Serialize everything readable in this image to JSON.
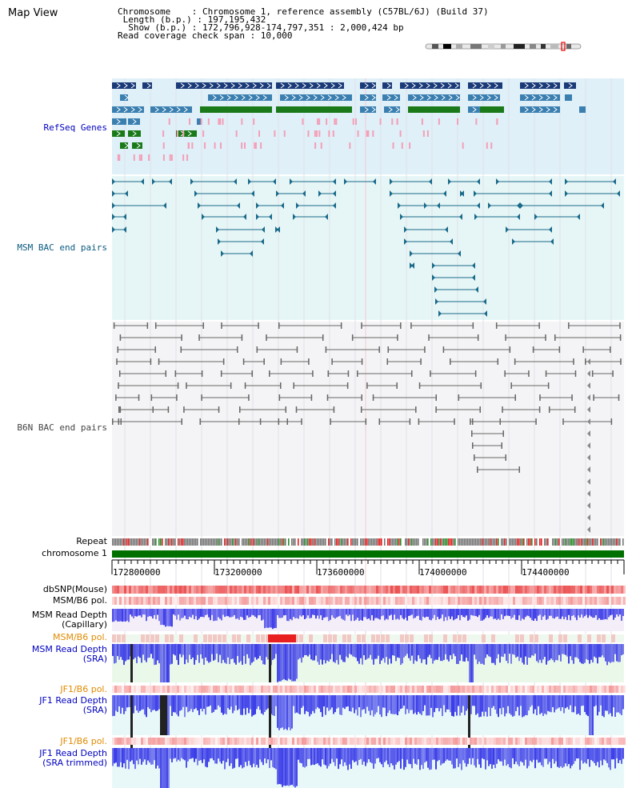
{
  "view": {
    "title": "Map View"
  },
  "info": {
    "lines": [
      "Chromosome    : Chromosome 1, reference assembly (C57BL/6J) (Build 37)",
      " Length (b.p.) : 197,195,432",
      "  Show (b.p.) : 172,796,928-174,797,351 : 2,000,424 bp",
      "Read coverage check span : 10,000"
    ]
  },
  "tracks": {
    "refseq": "RefSeq Genes",
    "msm_bac": "MSM BAC end pairs",
    "b6n_bac": "B6N BAC end pairs",
    "repeat": "Repeat",
    "chromosome": "chromosome 1",
    "dbsnp": "dbSNP(Mouse)",
    "msm_b6_pol_1": "MSM/B6 pol.",
    "msm_depth_cap_1": "MSM Read Depth",
    "msm_depth_cap_2": "(Capillary)",
    "msm_b6_pol_2": "MSM/B6 pol.",
    "msm_depth_sra_1": "MSM Read Depth",
    "msm_depth_sra_2": "(SRA)",
    "jf1_b6_pol_1": "JF1/B6 pol.",
    "jf1_depth_sra_1": "JF1 Read Depth",
    "jf1_depth_sra_2": "(SRA)",
    "jf1_b6_pol_2": "JF1/B6 pol.",
    "jf1_depth_trim_1": "JF1 Read Depth",
    "jf1_depth_trim_2": "(SRA trimmed)"
  },
  "axis": {
    "ticks": [
      "172800000",
      "173200000",
      "173600000",
      "174000000",
      "174400000"
    ]
  },
  "colors": {
    "refseq_bg": "#dff0f8",
    "msm_bg": "#e6f6f6",
    "b6n_bg": "#f4f4f6",
    "gene_dark": "#1a3a78",
    "gene_mid": "#3a7fb0",
    "gene_green": "#1a7a1a",
    "gene_pink": "#f4a0b8",
    "bac_teal": "#1a6a8a",
    "bac_gray": "#666666",
    "chrom_green": "#007000",
    "depth_blue": "#2020e0",
    "pol_red": "#e84040"
  }
}
